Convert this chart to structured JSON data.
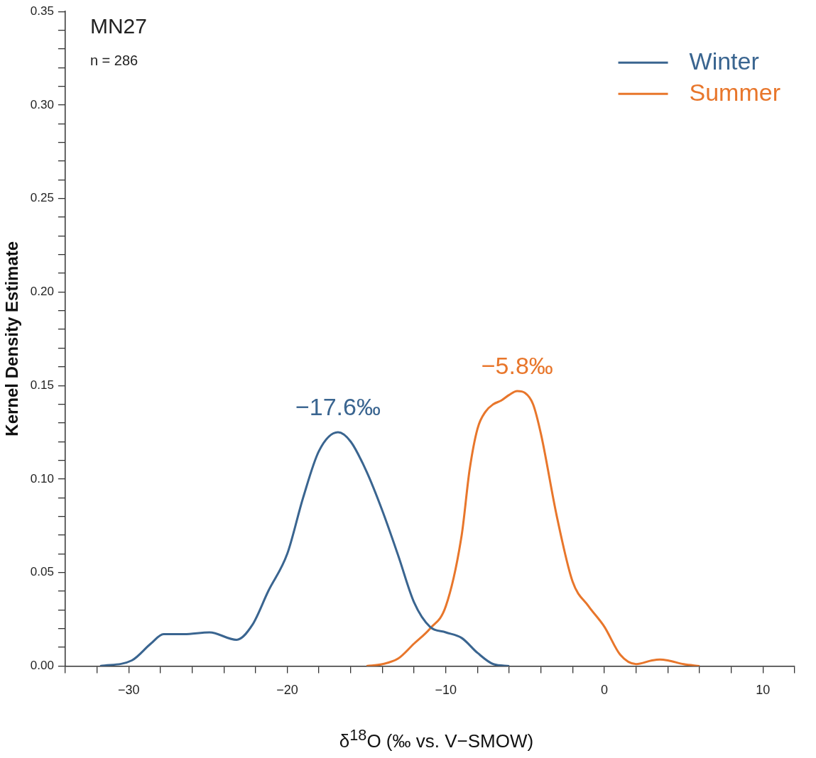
{
  "chart_data": {
    "type": "line",
    "title": "MN27",
    "xlabel": "δ$^{18}$O (‰ vs. V−SMOW)",
    "ylabel": "Kernel Density Estimate",
    "annotations": [
      "n = 286",
      {
        "text": "−17.6‰",
        "x": -16.8,
        "y": 0.125
      },
      {
        "text": "−5.8‰",
        "x": -5.5,
        "y": 0.147
      }
    ],
    "series": [
      {
        "name": "Winter",
        "color": "#3a6590",
        "x": [
          -31.8,
          -29.8,
          -28.6,
          -27.8,
          -26.5,
          -24.9,
          -23.2,
          -22.2,
          -21.2,
          -20,
          -19,
          -18,
          -16.8,
          -16,
          -15,
          -14,
          -13,
          -12,
          -11,
          -10,
          -9,
          -8,
          -7,
          -6
        ],
        "values": [
          0,
          0.003,
          0.012,
          0.017,
          0.017,
          0.018,
          0.014,
          0.022,
          0.04,
          0.06,
          0.09,
          0.115,
          0.125,
          0.12,
          0.104,
          0.083,
          0.059,
          0.034,
          0.021,
          0.018,
          0.015,
          0.007,
          0.001,
          0
        ]
      },
      {
        "name": "Summer",
        "color": "#e8762b",
        "x": [
          -15,
          -14,
          -13,
          -12,
          -11,
          -10,
          -9,
          -8.5,
          -8,
          -7.5,
          -7,
          -6.5,
          -6,
          -5.5,
          -5,
          -4.5,
          -4,
          -3,
          -2,
          -1,
          0,
          1,
          2,
          3,
          3.5,
          4,
          5,
          6
        ],
        "values": [
          0,
          0.001,
          0.004,
          0.012,
          0.02,
          0.032,
          0.07,
          0.105,
          0.127,
          0.136,
          0.14,
          0.142,
          0.145,
          0.147,
          0.146,
          0.14,
          0.124,
          0.08,
          0.045,
          0.032,
          0.021,
          0.006,
          0.001,
          0.003,
          0.0035,
          0.003,
          0.001,
          0
        ]
      }
    ],
    "xlim": [
      -34,
      12
    ],
    "xticks": [
      {
        "value": -34,
        "label": null
      },
      {
        "value": -32,
        "label": null
      },
      -30,
      {
        "value": -28,
        "label": null
      },
      {
        "value": -26,
        "label": null
      },
      {
        "value": -24,
        "label": null
      },
      {
        "value": -22,
        "label": null
      },
      -20,
      {
        "value": -18,
        "label": null
      },
      {
        "value": -16,
        "label": null
      },
      {
        "value": -14,
        "label": null
      },
      {
        "value": -12,
        "label": null
      },
      -10,
      {
        "value": -8,
        "label": null
      },
      {
        "value": -6,
        "label": null
      },
      {
        "value": -4,
        "label": null
      },
      {
        "value": -2,
        "label": null
      },
      0,
      {
        "value": 2,
        "label": null
      },
      {
        "value": 4,
        "label": null
      },
      {
        "value": 6,
        "label": null
      },
      {
        "value": 8,
        "label": null
      },
      10,
      {
        "value": 12,
        "label": null
      }
    ],
    "ylim": [
      0,
      0.35
    ],
    "yticks": [
      {
        "value": 0,
        "label": "0.00"
      },
      {
        "value": 0.01,
        "label": null
      },
      {
        "value": 0.02,
        "label": null
      },
      {
        "value": 0.03,
        "label": null
      },
      {
        "value": 0.04,
        "label": null
      },
      {
        "value": 0.05,
        "label": "0.05"
      },
      {
        "value": 0.06,
        "label": null
      },
      {
        "value": 0.07,
        "label": null
      },
      {
        "value": 0.08,
        "label": null
      },
      {
        "value": 0.09,
        "label": null
      },
      {
        "value": 0.1,
        "label": "0.10"
      },
      {
        "value": 0.11,
        "label": null
      },
      {
        "value": 0.12,
        "label": null
      },
      {
        "value": 0.13,
        "label": null
      },
      {
        "value": 0.14,
        "label": null
      },
      {
        "value": 0.15,
        "label": "0.15"
      },
      {
        "value": 0.16,
        "label": null
      },
      {
        "value": 0.17,
        "label": null
      },
      {
        "value": 0.18,
        "label": null
      },
      {
        "value": 0.19,
        "label": null
      },
      {
        "value": 0.2,
        "label": "0.20"
      },
      {
        "value": 0.21,
        "label": null
      },
      {
        "value": 0.22,
        "label": null
      },
      {
        "value": 0.23,
        "label": null
      },
      {
        "value": 0.24,
        "label": null
      },
      {
        "value": 0.25,
        "label": "0.25"
      },
      {
        "value": 0.26,
        "label": null
      },
      {
        "value": 0.27,
        "label": null
      },
      {
        "value": 0.28,
        "label": null
      },
      {
        "value": 0.29,
        "label": null
      },
      {
        "value": 0.3,
        "label": "0.30"
      },
      {
        "value": 0.31,
        "label": null
      },
      {
        "value": 0.32,
        "label": null
      },
      {
        "value": 0.33,
        "label": null
      },
      {
        "value": 0.34,
        "label": null
      },
      {
        "value": 0.35,
        "label": "0.35"
      }
    ],
    "grid": false,
    "legend": "top right",
    "marker": "none",
    "line_style": "solid"
  }
}
